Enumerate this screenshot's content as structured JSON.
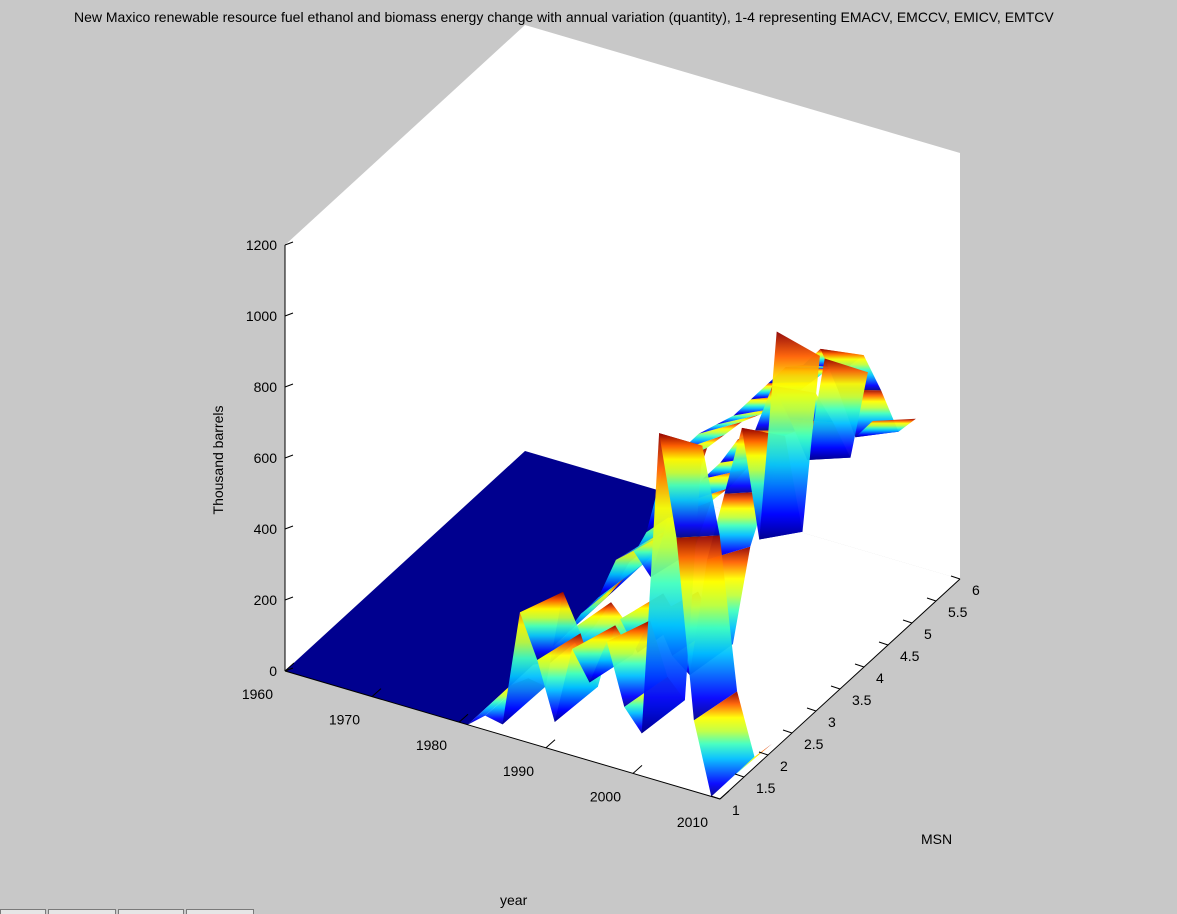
{
  "chart_data": {
    "type": "surface3d",
    "title": "New Maxico renewable resource fuel ethanol and biomass energy change with annual variation (quantity), 1-4 representing EMACV, EMCCV, EMICV, EMTCV",
    "xlabel": "year",
    "ylabel": "MSN",
    "zlabel": "Thousand barrels",
    "xlim": [
      1960,
      2010
    ],
    "ylim": [
      1,
      6
    ],
    "zlim": [
      0,
      1200
    ],
    "x_ticks": [
      1960,
      1970,
      1980,
      1990,
      2000,
      2010
    ],
    "y_ticks": [
      1,
      1.5,
      2,
      2.5,
      3,
      3.5,
      4,
      4.5,
      5,
      5.5,
      6
    ],
    "z_ticks": [
      0,
      200,
      400,
      600,
      800,
      1000,
      1200
    ],
    "x_tick_labels": [
      "1960",
      "1970",
      "1980",
      "1990",
      "2000",
      "2010"
    ],
    "y_tick_labels": [
      "1",
      "1.5",
      "2",
      "2.5",
      "3",
      "3.5",
      "4",
      "4.5",
      "5",
      "5.5",
      "6"
    ],
    "z_tick_labels": [
      "0",
      "200",
      "400",
      "600",
      "800",
      "1000",
      "1200"
    ],
    "colormap": "jet",
    "grid": false,
    "series": [
      {
        "name": "EMACV",
        "msn": 1,
        "x": [
          1981,
          1983,
          1985,
          1987,
          1989,
          1991,
          1993,
          1995,
          1997,
          1999,
          2001,
          2003,
          2005,
          2007,
          2009,
          2011
        ],
        "values": [
          0,
          40,
          30,
          360,
          240,
          80,
          300,
          220,
          350,
          180,
          120,
          980,
          700,
          200,
          0,
          60
        ]
      },
      {
        "name": "EMCCV",
        "msn": 2,
        "x": [
          1981,
          1983,
          1985,
          1987,
          1989,
          1991,
          1993,
          1995,
          1997,
          1999,
          2001,
          2003,
          2005,
          2007,
          2009,
          2011
        ],
        "values": [
          0,
          60,
          80,
          180,
          120,
          100,
          260,
          180,
          300,
          200,
          160,
          500,
          700,
          900,
          600,
          1200
        ]
      },
      {
        "name": "EMICV",
        "msn": 3,
        "x": [
          1981,
          1983,
          1985,
          1987,
          1989,
          1991,
          1993,
          1995,
          1997,
          1999,
          2001,
          2003,
          2005,
          2007,
          2009,
          2011
        ],
        "values": [
          0,
          80,
          140,
          260,
          300,
          240,
          420,
          480,
          560,
          620,
          700,
          740,
          880,
          800,
          700,
          1000
        ]
      },
      {
        "name": "EMTCV",
        "msn": 4,
        "x": [
          1981,
          1983,
          1985,
          1987,
          1989,
          1991,
          1993,
          1995,
          1997,
          1999,
          2001,
          2003,
          2005,
          2007,
          2009,
          2011
        ],
        "values": [
          0,
          100,
          200,
          400,
          460,
          520,
          560,
          600,
          660,
          720,
          780,
          800,
          860,
          760,
          640,
          700
        ]
      }
    ]
  },
  "colors": {
    "background": "#c8c8c8",
    "axes_face": "#ffffff",
    "flat_surface": "#00008f"
  }
}
